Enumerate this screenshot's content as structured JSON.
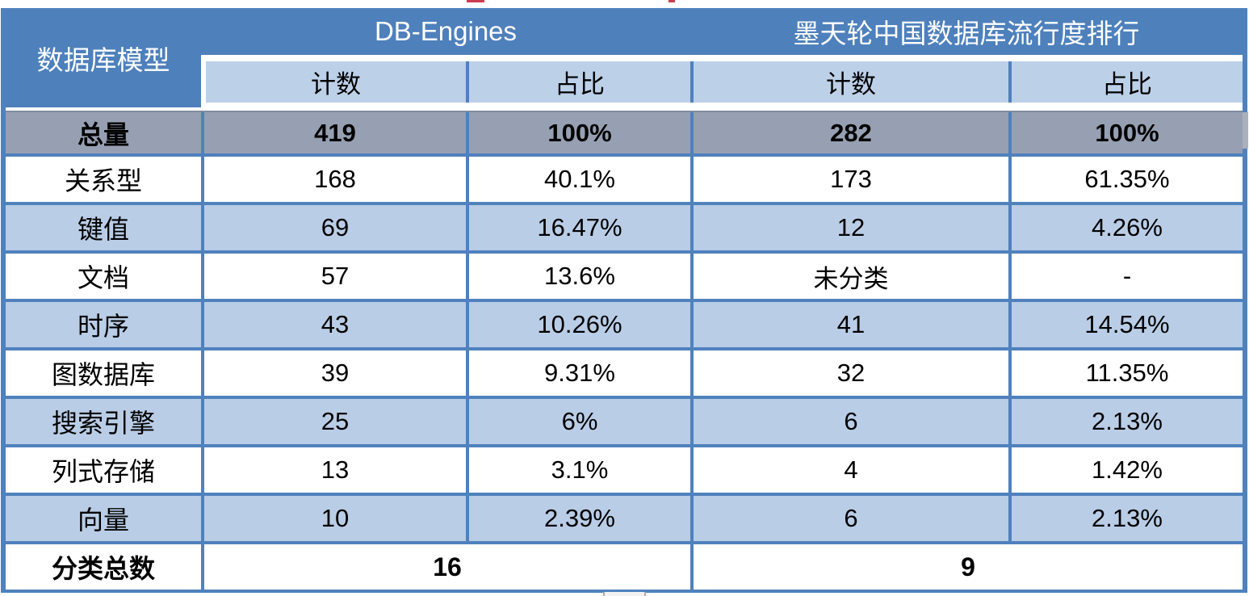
{
  "colors": {
    "header_blue": "#4e80bc",
    "subheader_light_blue": "#bcd0e8",
    "row_light_blue": "#b9cde6",
    "total_row_gray": "#96a0b2",
    "border_blue": "#4f81bd",
    "row_white": "#ffffff",
    "text_black": "#000000",
    "text_white": "#ffffff",
    "artifact_red": "#cc3b4d",
    "scrollbar_gray": "#f2f2f2"
  },
  "chart_data": {
    "type": "table",
    "corner_header": "数据库模型",
    "groups": [
      {
        "label": "DB-Engines",
        "sub_columns": [
          "计数",
          "占比"
        ]
      },
      {
        "label": "墨天轮中国数据库流行度排行",
        "sub_columns": [
          "计数",
          "占比"
        ]
      }
    ],
    "total_row": {
      "label": "总量",
      "values": [
        "419",
        "100%",
        "282",
        "100%"
      ]
    },
    "rows": [
      {
        "label": "关系型",
        "values": [
          "168",
          "40.1%",
          "173",
          "61.35%"
        ]
      },
      {
        "label": "键值",
        "values": [
          "69",
          "16.47%",
          "12",
          "4.26%"
        ]
      },
      {
        "label": "文档",
        "values": [
          "57",
          "13.6%",
          "未分类",
          "-"
        ]
      },
      {
        "label": "时序",
        "values": [
          "43",
          "10.26%",
          "41",
          "14.54%"
        ]
      },
      {
        "label": "图数据库",
        "values": [
          "39",
          "9.31%",
          "32",
          "11.35%"
        ]
      },
      {
        "label": "搜索引擎",
        "values": [
          "25",
          "6%",
          "6",
          "2.13%"
        ]
      },
      {
        "label": "列式存储",
        "values": [
          "13",
          "3.1%",
          "4",
          "1.42%"
        ]
      },
      {
        "label": "向量",
        "values": [
          "10",
          "2.39%",
          "6",
          "2.13%"
        ]
      }
    ],
    "footer_row": {
      "label": "分类总数",
      "db_engines_total": "16",
      "modb_total": "9"
    }
  }
}
